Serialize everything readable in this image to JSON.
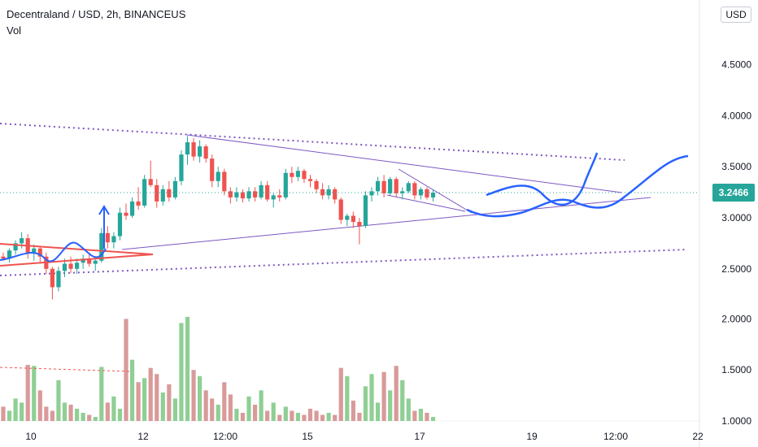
{
  "legend": {
    "title": "Decentraland / USD, 2h, BINANCEUS",
    "vol_label": "Vol"
  },
  "currency_button": "USD",
  "price_badge": "3.2466",
  "colors": {
    "up": "#26a69a",
    "down": "#ef5350",
    "vol_up": "#8fcf94",
    "vol_down": "#d99a9a",
    "drawing_blue": "#2962ff",
    "purple": "#7e57c2"
  },
  "icons": [
    "currency-selector-icon"
  ],
  "chart_data": {
    "type": "candlestick",
    "symbol": "Decentraland / USD",
    "interval": "2h",
    "exchange": "BINANCEUS",
    "y_axis": {
      "ticks": [
        "4.5000",
        "4.0000",
        "3.5000",
        "3.0000",
        "2.5000",
        "2.0000",
        "1.5000",
        "1.0000"
      ],
      "values": [
        4.5,
        4.0,
        3.5,
        3.0,
        2.5,
        2.0,
        1.5,
        1.0
      ],
      "range": [
        1.0,
        5.0
      ]
    },
    "x_axis": {
      "ticks": [
        "10",
        "12",
        "12:00",
        "15",
        "17",
        "19",
        "12:00",
        "22"
      ]
    },
    "last_price": 3.2466,
    "candles": [
      [
        2.62,
        2.66,
        2.58,
        2.6
      ],
      [
        2.6,
        2.7,
        2.56,
        2.68
      ],
      [
        2.68,
        2.78,
        2.64,
        2.75
      ],
      [
        2.75,
        2.86,
        2.7,
        2.8
      ],
      [
        2.8,
        2.84,
        2.6,
        2.66
      ],
      [
        2.66,
        2.74,
        2.58,
        2.7
      ],
      [
        2.7,
        2.72,
        2.55,
        2.62
      ],
      [
        2.62,
        2.66,
        2.45,
        2.5
      ],
      [
        2.5,
        2.52,
        2.2,
        2.32
      ],
      [
        2.32,
        2.52,
        2.28,
        2.48
      ],
      [
        2.48,
        2.6,
        2.42,
        2.55
      ],
      [
        2.55,
        2.62,
        2.46,
        2.5
      ],
      [
        2.5,
        2.6,
        2.45,
        2.56
      ],
      [
        2.56,
        2.64,
        2.5,
        2.6
      ],
      [
        2.6,
        2.66,
        2.52,
        2.55
      ],
      [
        2.55,
        2.62,
        2.48,
        2.58
      ],
      [
        2.58,
        2.9,
        2.56,
        2.85
      ],
      [
        2.85,
        2.92,
        2.7,
        2.76
      ],
      [
        2.76,
        2.86,
        2.7,
        2.82
      ],
      [
        2.82,
        3.1,
        2.78,
        3.05
      ],
      [
        3.05,
        3.14,
        2.98,
        3.02
      ],
      [
        3.02,
        3.2,
        3.0,
        3.16
      ],
      [
        3.16,
        3.3,
        3.08,
        3.12
      ],
      [
        3.12,
        3.42,
        3.1,
        3.38
      ],
      [
        3.38,
        3.56,
        3.3,
        3.32
      ],
      [
        3.32,
        3.38,
        3.1,
        3.16
      ],
      [
        3.16,
        3.32,
        3.12,
        3.28
      ],
      [
        3.28,
        3.36,
        3.16,
        3.2
      ],
      [
        3.2,
        3.4,
        3.18,
        3.36
      ],
      [
        3.36,
        3.66,
        3.32,
        3.62
      ],
      [
        3.62,
        3.8,
        3.52,
        3.74
      ],
      [
        3.74,
        3.78,
        3.56,
        3.6
      ],
      [
        3.6,
        3.76,
        3.54,
        3.7
      ],
      [
        3.7,
        3.72,
        3.54,
        3.58
      ],
      [
        3.58,
        3.62,
        3.3,
        3.36
      ],
      [
        3.36,
        3.5,
        3.3,
        3.45
      ],
      [
        3.45,
        3.48,
        3.22,
        3.26
      ],
      [
        3.26,
        3.3,
        3.14,
        3.2
      ],
      [
        3.2,
        3.3,
        3.16,
        3.25
      ],
      [
        3.25,
        3.28,
        3.15,
        3.19
      ],
      [
        3.19,
        3.3,
        3.16,
        3.26
      ],
      [
        3.26,
        3.3,
        3.16,
        3.2
      ],
      [
        3.2,
        3.36,
        3.18,
        3.32
      ],
      [
        3.32,
        3.36,
        3.16,
        3.18
      ],
      [
        3.18,
        3.24,
        3.1,
        3.22
      ],
      [
        3.22,
        3.28,
        3.16,
        3.2
      ],
      [
        3.2,
        3.48,
        3.18,
        3.44
      ],
      [
        3.44,
        3.5,
        3.34,
        3.4
      ],
      [
        3.4,
        3.5,
        3.36,
        3.46
      ],
      [
        3.46,
        3.48,
        3.34,
        3.38
      ],
      [
        3.38,
        3.42,
        3.3,
        3.36
      ],
      [
        3.36,
        3.38,
        3.24,
        3.28
      ],
      [
        3.28,
        3.34,
        3.18,
        3.22
      ],
      [
        3.22,
        3.32,
        3.18,
        3.28
      ],
      [
        3.28,
        3.3,
        3.14,
        3.18
      ],
      [
        3.18,
        3.2,
        2.94,
        2.98
      ],
      [
        2.98,
        3.04,
        2.92,
        3.02
      ],
      [
        3.02,
        3.06,
        2.9,
        2.96
      ],
      [
        2.96,
        3.0,
        2.74,
        2.92
      ],
      [
        2.92,
        3.26,
        2.9,
        3.22
      ],
      [
        3.22,
        3.3,
        3.16,
        3.26
      ],
      [
        3.26,
        3.4,
        3.22,
        3.36
      ],
      [
        3.36,
        3.42,
        3.2,
        3.24
      ],
      [
        3.24,
        3.4,
        3.22,
        3.38
      ],
      [
        3.38,
        3.4,
        3.2,
        3.24
      ],
      [
        3.24,
        3.3,
        3.18,
        3.26
      ],
      [
        3.26,
        3.36,
        3.24,
        3.34
      ],
      [
        3.34,
        3.36,
        3.18,
        3.22
      ],
      [
        3.22,
        3.3,
        3.18,
        3.28
      ],
      [
        3.28,
        3.3,
        3.18,
        3.2
      ],
      [
        3.2,
        3.28,
        3.16,
        3.2466
      ]
    ],
    "volume": [
      1.14,
      1.1,
      1.22,
      1.18,
      1.55,
      1.54,
      1.3,
      1.14,
      1.1,
      1.4,
      1.18,
      1.16,
      1.12,
      1.08,
      1.06,
      1.04,
      1.53,
      1.18,
      1.24,
      1.12,
      2.0,
      1.6,
      1.38,
      1.42,
      1.52,
      1.46,
      1.28,
      1.36,
      1.22,
      1.96,
      2.02,
      1.5,
      1.44,
      1.3,
      1.22,
      1.16,
      1.38,
      1.26,
      1.12,
      1.08,
      1.24,
      1.16,
      1.3,
      1.1,
      1.18,
      1.06,
      1.14,
      1.1,
      1.08,
      1.06,
      1.12,
      1.1,
      1.06,
      1.08,
      1.06,
      1.52,
      1.44,
      1.2,
      1.08,
      1.34,
      1.46,
      1.18,
      1.48,
      1.3,
      1.54,
      1.4,
      1.22,
      1.1,
      1.12,
      1.08,
      1.04
    ]
  }
}
